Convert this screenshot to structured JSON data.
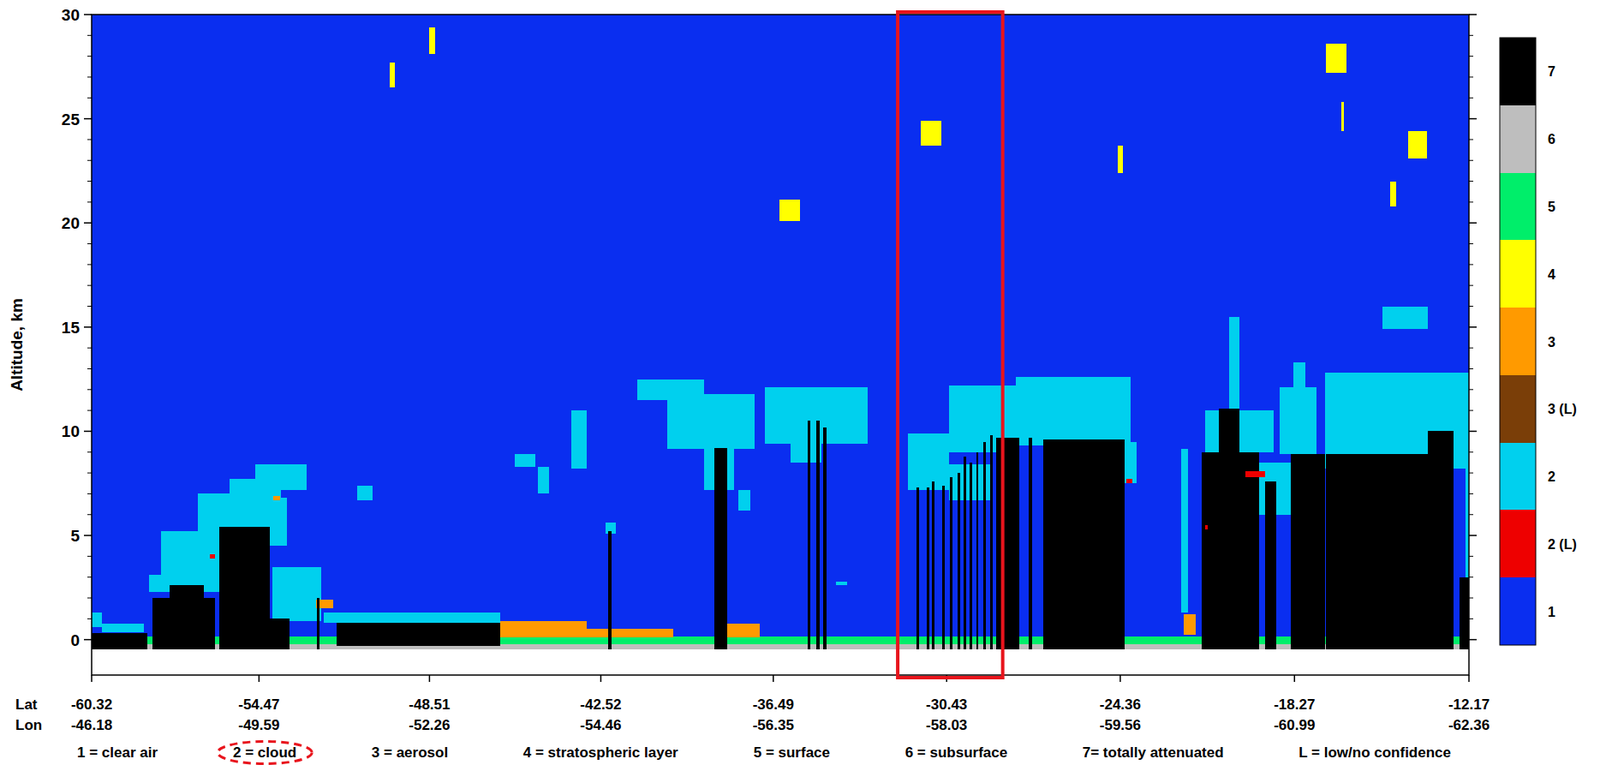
{
  "chart_data": {
    "type": "heatmap",
    "y_label": "Altitude, km",
    "xlim": [
      -60.32,
      -12.17
    ],
    "ylim": [
      -1.7,
      30
    ],
    "xticks": [
      -60.32,
      -54.47,
      -48.51,
      -42.52,
      -36.49,
      -30.43,
      -24.36,
      -18.27,
      -12.17
    ],
    "lon_ticks": [
      -46.18,
      -49.59,
      -52.26,
      -54.46,
      -56.35,
      -58.03,
      -59.56,
      -60.99,
      -62.36
    ],
    "x_row_labels": [
      "Lat",
      "Lon"
    ],
    "yticks": [
      0,
      5,
      10,
      15,
      20,
      25,
      30
    ],
    "colorbar": [
      {
        "label": "7",
        "color": "#000000"
      },
      {
        "label": "6",
        "color": "#bebebe"
      },
      {
        "label": "5",
        "color": "#00ee6a"
      },
      {
        "label": "4",
        "color": "#ffff00"
      },
      {
        "label": "3",
        "color": "#ff9a00"
      },
      {
        "label": "3 (L)",
        "color": "#7a3e08"
      },
      {
        "label": "2",
        "color": "#00d0ee"
      },
      {
        "label": "2 (L)",
        "color": "#ee0000"
      },
      {
        "label": "1",
        "color": "#0a2ef0"
      }
    ],
    "legend": "bottom",
    "legend_items": [
      {
        "text": "1 = clear air"
      },
      {
        "text": "2 = cloud",
        "highlight": true
      },
      {
        "text": "3 = aerosol"
      },
      {
        "text": "4 = stratospheric layer"
      },
      {
        "text": "5 = surface"
      },
      {
        "text": "6 = subsurface"
      },
      {
        "text": "7= totally attenuated"
      },
      {
        "text": "L = low/no confidence"
      }
    ],
    "highlight_box": {
      "lat": [
        -32.14,
        -28.47
      ]
    },
    "features": [
      [
        "1",
        -60.32,
        -12.17,
        0,
        30
      ],
      [
        "6",
        -60.32,
        -12.17,
        -0.45,
        -0.2
      ],
      [
        "5",
        -60.32,
        -12.17,
        -0.2,
        0.15
      ],
      [
        "2",
        -60.32,
        -59.96,
        0.6,
        1.3
      ],
      [
        "2",
        -59.96,
        -58.5,
        0.35,
        0.75
      ],
      [
        "7",
        -60.32,
        -58.36,
        -0.45,
        0.3
      ],
      [
        "2",
        -58.3,
        -55.86,
        2.3,
        3.1
      ],
      [
        "2",
        -57.9,
        -55.86,
        3.1,
        5.2
      ],
      [
        "2",
        -56.6,
        -54.6,
        5.2,
        7.0
      ],
      [
        "2",
        -55.86,
        -53.5,
        4.5,
        6.8
      ],
      [
        "2",
        -55.5,
        -53.7,
        6.7,
        7.7
      ],
      [
        "2",
        -54.6,
        -52.8,
        7.2,
        8.4
      ],
      [
        "2",
        -54.0,
        -52.3,
        0.9,
        3.5
      ],
      [
        "7",
        -58.2,
        -56.0,
        -0.45,
        2.0
      ],
      [
        "7",
        -57.6,
        -56.4,
        2.0,
        2.6
      ],
      [
        "7",
        -55.86,
        -54.08,
        -0.45,
        5.4
      ],
      [
        "7",
        -54.08,
        -53.4,
        -0.45,
        1.0
      ],
      [
        "2 (L)",
        -56.2,
        -56.0,
        3.9,
        4.1
      ],
      [
        "3",
        -53.97,
        -53.72,
        6.7,
        6.9
      ],
      [
        "3",
        -52.47,
        -51.87,
        1.5,
        1.9
      ],
      [
        "7",
        -52.45,
        -52.35,
        -0.45,
        2.0
      ],
      [
        "2",
        -52.2,
        -46.05,
        0.8,
        1.3
      ],
      [
        "7",
        -51.76,
        -46.05,
        -0.3,
        0.8
      ],
      [
        "2",
        -51.05,
        -50.5,
        6.7,
        7.4
      ],
      [
        "3",
        -46.05,
        -43.0,
        0.1,
        0.9
      ],
      [
        "3",
        -43.0,
        -39.99,
        0.1,
        0.5
      ],
      [
        "2",
        -45.52,
        -44.8,
        8.3,
        8.9
      ],
      [
        "2",
        -44.73,
        -44.34,
        7.0,
        8.3
      ],
      [
        "2",
        -43.56,
        -43.02,
        8.2,
        11.0
      ],
      [
        "2",
        -42.35,
        -42.0,
        5.1,
        5.6
      ],
      [
        "7",
        -42.25,
        -42.15,
        -0.45,
        5.2
      ],
      [
        "3",
        -38.13,
        -36.96,
        0.1,
        0.75
      ],
      [
        "2",
        -41.24,
        -38.92,
        11.5,
        12.5
      ],
      [
        "2",
        -40.2,
        -37.13,
        9.15,
        11.8
      ],
      [
        "2",
        -38.92,
        -37.85,
        7.2,
        9.15
      ],
      [
        "2",
        -37.7,
        -37.3,
        6.2,
        7.2
      ],
      [
        "2",
        -36.78,
        -33.2,
        9.4,
        12.1
      ],
      [
        "2",
        -35.9,
        -34.8,
        8.5,
        9.4
      ],
      [
        "2",
        -34.3,
        -33.9,
        2.6,
        2.8
      ],
      [
        "7",
        -38.56,
        -38.1,
        -0.45,
        9.2
      ],
      [
        "7",
        -35.3,
        -35.2,
        -0.45,
        10.5
      ],
      [
        "7",
        -34.98,
        -34.88,
        -0.45,
        10.5
      ],
      [
        "7",
        -34.75,
        -34.62,
        -0.45,
        10.2
      ],
      [
        "2",
        -31.79,
        -30.36,
        7.2,
        9.9
      ],
      [
        "2",
        -30.36,
        -28.9,
        6.7,
        8.4
      ],
      [
        "2",
        -30.36,
        -28.0,
        9.0,
        12.2
      ],
      [
        "2",
        -28.0,
        -24.0,
        9.3,
        12.6
      ],
      [
        "2",
        -24.3,
        -23.8,
        7.5,
        9.5
      ],
      [
        "7",
        -31.47,
        -31.39,
        -0.45,
        7.3
      ],
      [
        "7",
        -31.11,
        -31.03,
        -0.45,
        7.3
      ],
      [
        "7",
        -30.93,
        -30.85,
        -0.45,
        7.6
      ],
      [
        "7",
        -30.58,
        -30.5,
        -0.45,
        7.4
      ],
      [
        "7",
        -30.32,
        -30.24,
        -0.45,
        7.8
      ],
      [
        "7",
        -30.04,
        -29.96,
        -0.45,
        8.0
      ],
      [
        "7",
        -29.83,
        -29.75,
        -0.45,
        8.8
      ],
      [
        "7",
        -29.62,
        -29.54,
        -0.45,
        8.5
      ],
      [
        "7",
        -29.4,
        -29.32,
        -0.45,
        9.0
      ],
      [
        "7",
        -29.15,
        -29.07,
        -0.45,
        9.5
      ],
      [
        "7",
        -28.9,
        -28.82,
        -0.45,
        9.8
      ],
      [
        "7",
        -28.7,
        -27.9,
        -0.45,
        9.7
      ],
      [
        "7",
        -27.55,
        -27.45,
        -0.45,
        9.7
      ],
      [
        "7",
        -27.05,
        -24.2,
        -0.45,
        9.6
      ],
      [
        "2 (L)",
        -24.15,
        -23.95,
        7.5,
        7.7
      ],
      [
        "3",
        -22.15,
        -21.72,
        0.25,
        1.2
      ],
      [
        "2",
        -22.23,
        -21.98,
        1.3,
        9.15
      ],
      [
        "2",
        -21.4,
        -19.0,
        9.0,
        11.0
      ],
      [
        "2",
        -20.55,
        -20.2,
        11.0,
        15.5
      ],
      [
        "2",
        -19.6,
        -18.0,
        6.0,
        8.5
      ],
      [
        "2",
        -18.8,
        -17.5,
        8.9,
        12.1
      ],
      [
        "2",
        -18.3,
        -17.9,
        11.0,
        13.3
      ],
      [
        "2",
        -17.2,
        -12.17,
        8.2,
        12.8
      ],
      [
        "2",
        -15.2,
        -13.6,
        14.9,
        16.0
      ],
      [
        "2",
        -12.3,
        -12.17,
        3.0,
        12.5
      ],
      [
        "7",
        -21.5,
        -19.5,
        -0.45,
        9.0
      ],
      [
        "7",
        -20.9,
        -20.2,
        9.0,
        11.1
      ],
      [
        "2 (L)",
        -21.4,
        -21.3,
        5.3,
        5.5
      ],
      [
        "7",
        -19.3,
        -18.9,
        -0.45,
        7.6
      ],
      [
        "2 (L)",
        -20.0,
        -19.3,
        7.8,
        8.1
      ],
      [
        "7",
        -18.4,
        -17.2,
        -0.45,
        8.9
      ],
      [
        "7",
        -17.16,
        -12.7,
        -0.45,
        8.9
      ],
      [
        "7",
        -13.6,
        -12.7,
        8.9,
        10.0
      ],
      [
        "7",
        -12.5,
        -12.17,
        -0.45,
        3.0
      ],
      [
        "4",
        -49.9,
        -49.73,
        26.5,
        27.7
      ],
      [
        "4",
        -48.51,
        -48.3,
        28.1,
        29.4
      ],
      [
        "4",
        -36.28,
        -35.56,
        20.1,
        21.1
      ],
      [
        "4",
        -31.32,
        -30.61,
        23.7,
        24.9
      ],
      [
        "4",
        -24.44,
        -24.26,
        22.4,
        23.7
      ],
      [
        "4",
        -17.16,
        -16.45,
        27.2,
        28.6
      ],
      [
        "4",
        -16.62,
        -16.55,
        24.4,
        25.8
      ],
      [
        "4",
        -14.3,
        -13.63,
        23.1,
        24.4
      ],
      [
        "4",
        -14.91,
        -14.73,
        20.8,
        22.0
      ]
    ]
  }
}
